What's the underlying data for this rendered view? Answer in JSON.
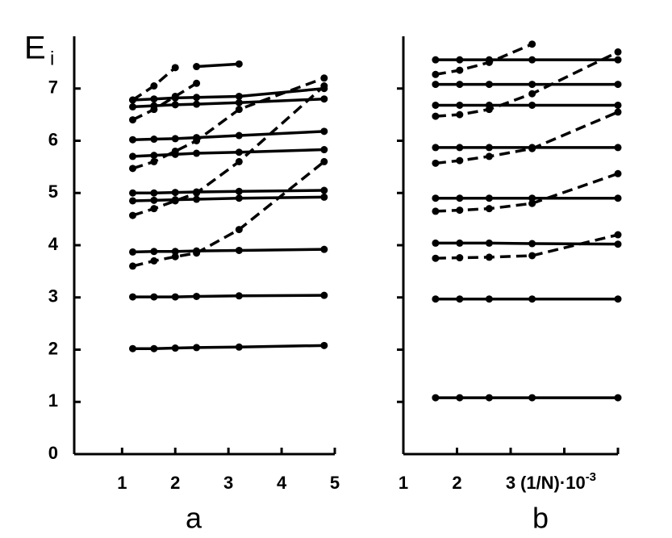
{
  "title": "E",
  "title_subscript": "i",
  "chart_data": [
    {
      "type": "line",
      "panel_label": "a",
      "xlim": [
        0.1,
        5
      ],
      "ylim": [
        0,
        8
      ],
      "xticks": [
        1,
        2,
        3,
        4,
        5
      ],
      "yticks": [
        0,
        1,
        2,
        3,
        4,
        5,
        6,
        7
      ],
      "color": "#000000",
      "series": [
        {
          "dashed": false,
          "x": [
            1.2,
            1.6,
            2.0,
            2.4,
            3.2,
            4.8
          ],
          "values": [
            2.02,
            2.02,
            2.03,
            2.04,
            2.05,
            2.08
          ]
        },
        {
          "dashed": false,
          "x": [
            1.2,
            1.6,
            2.0,
            2.4,
            3.2,
            4.8
          ],
          "values": [
            3.01,
            3.01,
            3.01,
            3.02,
            3.03,
            3.04
          ]
        },
        {
          "dashed": false,
          "x": [
            1.2,
            1.6,
            2.0,
            2.4,
            3.2,
            4.8
          ],
          "values": [
            3.87,
            3.88,
            3.88,
            3.89,
            3.9,
            3.92
          ]
        },
        {
          "dashed": false,
          "x": [
            1.2,
            1.6,
            2.0,
            2.4,
            3.2,
            4.8
          ],
          "values": [
            4.85,
            4.86,
            4.87,
            4.88,
            4.9,
            4.92
          ]
        },
        {
          "dashed": false,
          "x": [
            1.2,
            1.6,
            2.0,
            2.4,
            3.2,
            4.8
          ],
          "values": [
            5.0,
            5.0,
            5.01,
            5.02,
            5.03,
            5.05
          ]
        },
        {
          "dashed": false,
          "x": [
            1.2,
            1.6,
            2.0,
            2.4,
            3.2,
            4.8
          ],
          "values": [
            5.7,
            5.72,
            5.74,
            5.76,
            5.78,
            5.83
          ]
        },
        {
          "dashed": false,
          "x": [
            1.2,
            1.6,
            2.0,
            2.4,
            3.2,
            4.8
          ],
          "values": [
            6.02,
            6.03,
            6.04,
            6.06,
            6.1,
            6.18
          ]
        },
        {
          "dashed": false,
          "x": [
            1.2,
            1.6,
            2.0,
            2.4,
            3.2,
            4.8
          ],
          "values": [
            6.65,
            6.67,
            6.69,
            6.7,
            6.73,
            6.8
          ]
        },
        {
          "dashed": false,
          "x": [
            1.2,
            1.6,
            2.0,
            2.4,
            3.2,
            4.8
          ],
          "values": [
            6.78,
            6.8,
            6.82,
            6.83,
            6.85,
            7.0
          ]
        },
        {
          "dashed": false,
          "x": [
            2.4,
            3.2
          ],
          "values": [
            7.42,
            7.47
          ]
        },
        {
          "dashed": true,
          "x": [
            1.2,
            1.6,
            2.0,
            2.4,
            3.2,
            4.8
          ],
          "values": [
            3.6,
            3.7,
            3.78,
            3.85,
            4.3,
            5.6
          ]
        },
        {
          "dashed": true,
          "x": [
            1.2,
            1.6,
            2.0,
            2.4,
            3.2,
            4.8
          ],
          "values": [
            4.57,
            4.7,
            4.85,
            5.0,
            5.6,
            7.05
          ]
        },
        {
          "dashed": true,
          "x": [
            1.2,
            1.6,
            2.0,
            2.4,
            3.2,
            4.8
          ],
          "values": [
            5.47,
            5.6,
            5.8,
            6.0,
            6.6,
            7.2
          ]
        },
        {
          "dashed": true,
          "x": [
            1.2,
            1.6,
            2.0,
            2.4
          ],
          "values": [
            6.4,
            6.6,
            6.85,
            7.1
          ]
        },
        {
          "dashed": true,
          "x": [
            1.2,
            1.6,
            2.0
          ],
          "values": [
            6.78,
            7.05,
            7.4
          ]
        }
      ]
    },
    {
      "type": "line",
      "panel_label": "b",
      "xlim": [
        1,
        5
      ],
      "ylim": [
        0,
        8
      ],
      "xticks": [
        1,
        2,
        3
      ],
      "minor_xticks": [
        4,
        5
      ],
      "minor_yticks": [
        1,
        2,
        3,
        4,
        5,
        6,
        7
      ],
      "xlabel": "(1/N)·10",
      "xlabel_exponent": "-3",
      "color": "#000000",
      "series": [
        {
          "dashed": false,
          "x": [
            1.6,
            2.05,
            2.6,
            3.4,
            5.0
          ],
          "values": [
            1.08,
            1.08,
            1.08,
            1.08,
            1.08
          ]
        },
        {
          "dashed": false,
          "x": [
            1.6,
            2.05,
            2.6,
            3.4,
            5.0
          ],
          "values": [
            2.97,
            2.97,
            2.97,
            2.97,
            2.97
          ]
        },
        {
          "dashed": false,
          "x": [
            1.6,
            2.05,
            2.6,
            3.4,
            5.0
          ],
          "values": [
            4.04,
            4.04,
            4.04,
            4.03,
            4.02
          ]
        },
        {
          "dashed": false,
          "x": [
            1.6,
            2.05,
            2.6,
            3.4,
            5.0
          ],
          "values": [
            4.9,
            4.9,
            4.9,
            4.9,
            4.9
          ]
        },
        {
          "dashed": false,
          "x": [
            1.6,
            2.05,
            2.6,
            3.4,
            5.0
          ],
          "values": [
            5.87,
            5.87,
            5.87,
            5.87,
            5.87
          ]
        },
        {
          "dashed": false,
          "x": [
            1.6,
            2.05,
            2.6,
            3.4,
            5.0
          ],
          "values": [
            6.68,
            6.68,
            6.68,
            6.68,
            6.68
          ]
        },
        {
          "dashed": false,
          "x": [
            1.6,
            2.05,
            2.6,
            3.4,
            5.0
          ],
          "values": [
            7.08,
            7.08,
            7.08,
            7.08,
            7.08
          ]
        },
        {
          "dashed": false,
          "x": [
            1.6,
            2.05,
            2.6,
            3.4,
            5.0
          ],
          "values": [
            7.55,
            7.55,
            7.55,
            7.55,
            7.55
          ]
        },
        {
          "dashed": true,
          "x": [
            1.6,
            2.05,
            2.6,
            3.4,
            5.0
          ],
          "values": [
            3.75,
            3.76,
            3.77,
            3.8,
            4.2
          ]
        },
        {
          "dashed": true,
          "x": [
            1.6,
            2.05,
            2.6,
            3.4,
            5.0
          ],
          "values": [
            4.65,
            4.67,
            4.7,
            4.8,
            5.37
          ]
        },
        {
          "dashed": true,
          "x": [
            1.6,
            2.05,
            2.6,
            3.4,
            5.0
          ],
          "values": [
            5.57,
            5.62,
            5.7,
            5.85,
            6.55
          ]
        },
        {
          "dashed": true,
          "x": [
            1.6,
            2.05,
            2.6,
            3.4,
            5.0
          ],
          "values": [
            6.47,
            6.5,
            6.6,
            6.9,
            7.7
          ]
        },
        {
          "dashed": true,
          "x": [
            1.6,
            2.05,
            2.6,
            3.4
          ],
          "values": [
            7.27,
            7.35,
            7.5,
            7.85
          ]
        }
      ]
    }
  ]
}
